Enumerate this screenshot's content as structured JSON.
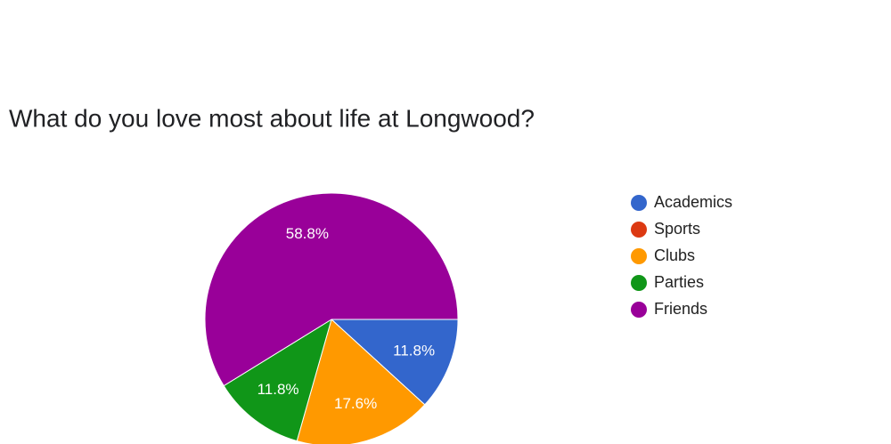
{
  "chart_data": {
    "type": "pie",
    "title": "What do you love most about life at Longwood?",
    "categories": [
      "Academics",
      "Sports",
      "Clubs",
      "Parties",
      "Friends"
    ],
    "values": [
      11.8,
      0,
      17.6,
      11.8,
      58.8
    ],
    "value_labels": [
      "11.8%",
      null,
      "17.6%",
      "11.8%",
      "58.8%"
    ],
    "colors": [
      "#3366cc",
      "#dc3912",
      "#ff9900",
      "#109618",
      "#990099"
    ],
    "legend": "right"
  }
}
